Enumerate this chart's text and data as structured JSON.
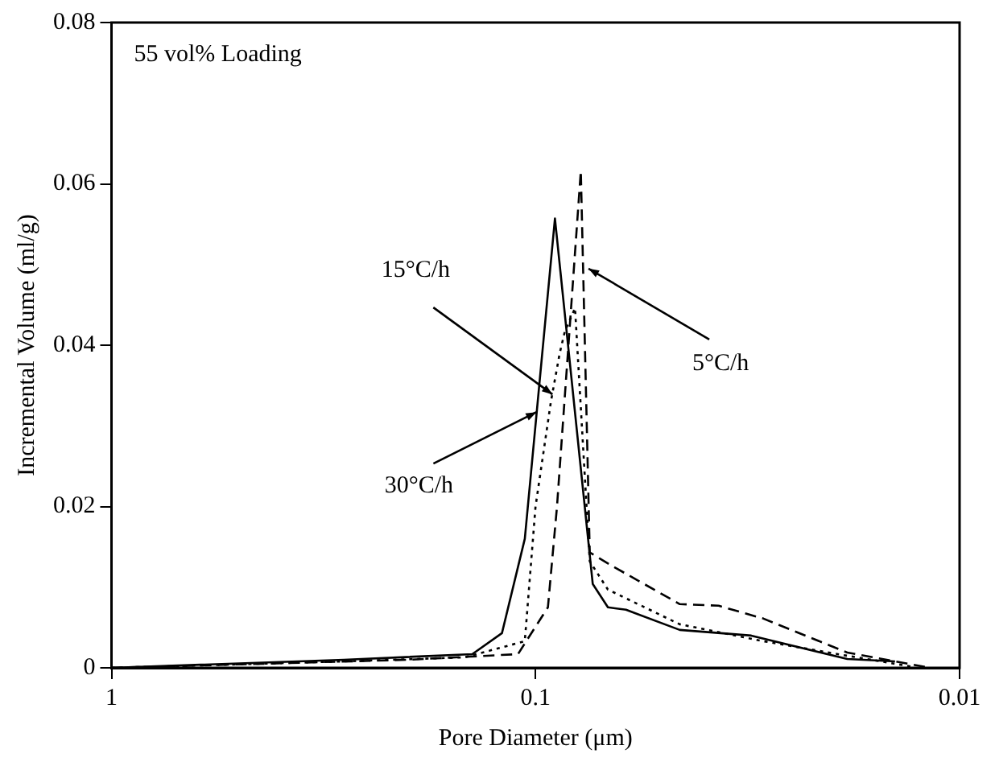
{
  "chart_data": {
    "type": "line",
    "xlabel": "Pore Diameter (μm)",
    "ylabel": "Incremental Volume (ml/g)",
    "log": "x",
    "xlim": [
      1,
      0.01
    ],
    "xticks": [
      1,
      0.1,
      0.01
    ],
    "ylim": [
      0,
      0.08
    ],
    "yticks": [
      0,
      0.02,
      0.04,
      0.06,
      0.08
    ],
    "grid": false,
    "legend": false,
    "marker": "none",
    "series": [
      {
        "color": "#000000",
        "line_style": "solid",
        "x": [
          1,
          0.283,
          0.141,
          0.12,
          0.106,
          0.09,
          0.0733,
          0.0675,
          0.0612,
          0.0457,
          0.031,
          0.0184,
          0.0142
        ],
        "values": [
          0,
          0.001,
          0.0017,
          0.0043,
          0.016,
          0.0557,
          0.0104,
          0.0075,
          0.0072,
          0.0047,
          0.004,
          0.0011,
          0.0008
        ]
      },
      {
        "color": "#000000",
        "line_style": "dotted",
        "x": [
          1,
          0.283,
          0.147,
          0.106,
          0.1,
          0.092,
          0.0877,
          0.0853,
          0.0807,
          0.0745,
          0.0675,
          0.0457,
          0.029,
          0.0184,
          0.0128
        ],
        "values": [
          0,
          0.0008,
          0.0013,
          0.0033,
          0.02,
          0.033,
          0.039,
          0.0417,
          0.0446,
          0.0132,
          0.0097,
          0.0054,
          0.0033,
          0.0015,
          0.0001
        ]
      },
      {
        "color": "#000000",
        "line_style": "dashed",
        "x": [
          1,
          0.2,
          0.11,
          0.0935,
          0.089,
          0.0782,
          0.0745,
          0.0653,
          0.0457,
          0.037,
          0.029,
          0.0184,
          0.012
        ],
        "values": [
          0,
          0.001,
          0.0017,
          0.0075,
          0.02,
          0.0616,
          0.0143,
          0.0125,
          0.0079,
          0.0077,
          0.0061,
          0.0019,
          0.0001
        ]
      }
    ],
    "annotations": [
      "55 vol% Loading",
      {
        "text": "15°C/h",
        "x": 0.0912,
        "y": 0.0339
      },
      {
        "text": "30°C/h",
        "x": 0.0995,
        "y": 0.0317
      },
      {
        "text": "5°C/h",
        "x": 0.075,
        "y": 0.0495
      }
    ]
  }
}
